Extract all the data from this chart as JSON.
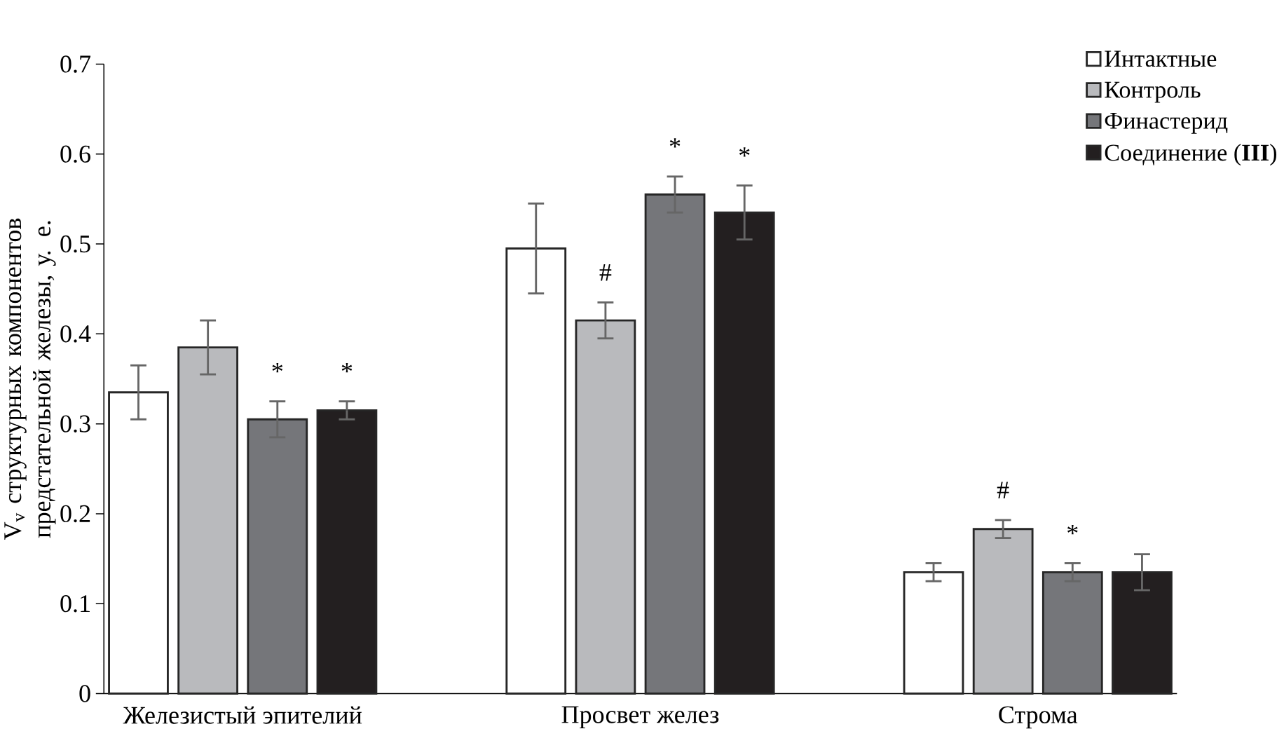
{
  "chart_data": {
    "type": "bar",
    "ylabel": "V$_{v}$ структурных компонентов предстательной железы, у. е.",
    "categories": [
      "Железистый эпителий",
      "Просвет желез",
      "Строма"
    ],
    "series": [
      {
        "name": "Интактные",
        "color": "#ffffff",
        "values": [
          0.335,
          0.495,
          0.135
        ],
        "errors": [
          0.03,
          0.05,
          0.01
        ]
      },
      {
        "name": "Контроль",
        "color": "#b9babd",
        "values": [
          0.385,
          0.415,
          0.183
        ],
        "errors": [
          0.03,
          0.02,
          0.01
        ],
        "value_labels": [
          null,
          "#",
          "#"
        ]
      },
      {
        "name": "Финастерид",
        "color": "#75767a",
        "values": [
          0.305,
          0.555,
          0.135
        ],
        "errors": [
          0.02,
          0.02,
          0.01
        ],
        "value_labels": [
          "*",
          "*",
          "*"
        ]
      },
      {
        "name": "Соединение (**III**)",
        "color": "#231f20",
        "values": [
          0.315,
          0.535,
          0.135
        ],
        "errors": [
          0.01,
          0.03,
          0.02
        ],
        "value_labels": [
          "*",
          "*",
          null
        ]
      }
    ],
    "ylim": [
      0,
      0.7
    ],
    "yticks": [
      0,
      0.1,
      0.2,
      0.3,
      0.4,
      0.5,
      0.6,
      0.7
    ],
    "grid": false,
    "legend": "top right"
  }
}
